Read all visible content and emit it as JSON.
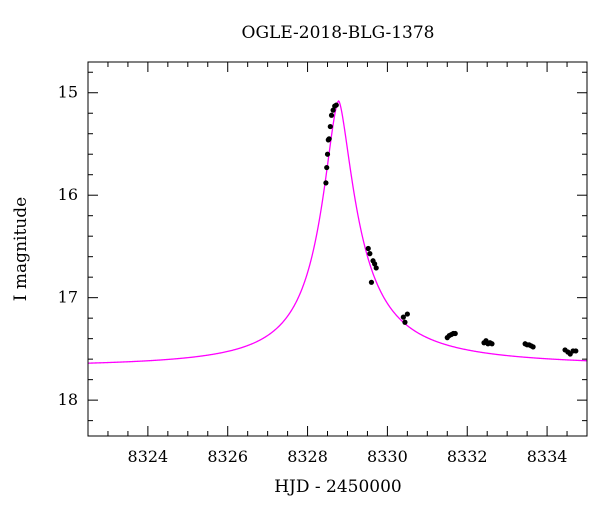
{
  "chart_data": {
    "type": "scatter",
    "title": "OGLE-2018-BLG-1378",
    "xlabel": "HJD - 2450000",
    "ylabel": "I magnitude",
    "xlim": [
      8322.5,
      8335.0
    ],
    "ylim": [
      18.35,
      14.7
    ],
    "y_inverted": true,
    "x_major_ticks": [
      8324,
      8326,
      8328,
      8330,
      8332,
      8334
    ],
    "x_minor_step": 0.5,
    "y_major_ticks": [
      15,
      16,
      17,
      18
    ],
    "y_minor_step": 0.2,
    "grid": false,
    "colors": {
      "model": "#ff00ff",
      "data": "#000000",
      "frame": "#000000"
    },
    "model": {
      "peak_x": 8328.78,
      "peak_mag": 15.08,
      "baseline_mag": 17.68
    },
    "series": [
      {
        "type": "points",
        "x": [
          8328.46,
          8328.48,
          8328.5,
          8328.52,
          8328.54,
          8328.57,
          8328.6,
          8328.64,
          8328.68,
          8328.72,
          8329.52,
          8329.56,
          8329.6,
          8329.64,
          8329.68,
          8329.72,
          8330.4,
          8330.44,
          8330.5,
          8331.5,
          8331.55,
          8331.6,
          8331.65,
          8331.7,
          8332.42,
          8332.47,
          8332.52,
          8332.57,
          8332.62,
          8333.45,
          8333.5,
          8333.55,
          8333.6,
          8333.65,
          8334.45,
          8334.52,
          8334.58,
          8334.65,
          8334.72
        ],
        "y": [
          15.88,
          15.73,
          15.6,
          15.46,
          15.45,
          15.33,
          15.22,
          15.17,
          15.13,
          15.12,
          16.52,
          16.57,
          16.85,
          16.64,
          16.67,
          16.71,
          17.19,
          17.24,
          17.16,
          17.39,
          17.37,
          17.36,
          17.35,
          17.35,
          17.44,
          17.42,
          17.45,
          17.44,
          17.45,
          17.45,
          17.46,
          17.46,
          17.47,
          17.48,
          17.51,
          17.53,
          17.55,
          17.52,
          17.52
        ]
      }
    ]
  }
}
